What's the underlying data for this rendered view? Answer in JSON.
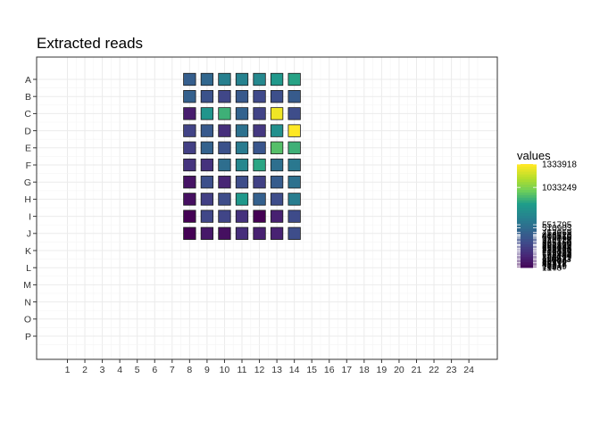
{
  "chart_data": {
    "type": "heatmap",
    "title": "Extracted reads",
    "xlabel": "",
    "ylabel": "",
    "rows": [
      "A",
      "B",
      "C",
      "D",
      "E",
      "F",
      "G",
      "H",
      "I",
      "J",
      "K",
      "L",
      "M",
      "N",
      "O",
      "P"
    ],
    "columns": [
      "1",
      "2",
      "3",
      "4",
      "5",
      "6",
      "7",
      "8",
      "9",
      "10",
      "11",
      "12",
      "13",
      "14",
      "15",
      "16",
      "17",
      "18",
      "19",
      "20",
      "21",
      "22",
      "23",
      "24"
    ],
    "filled_columns": [
      "8",
      "9",
      "10",
      "11",
      "12",
      "13",
      "14"
    ],
    "filled_rows": [
      "A",
      "B",
      "C",
      "D",
      "E",
      "F",
      "G",
      "H",
      "I",
      "J"
    ],
    "values": [
      [
        450000,
        500000,
        650000,
        660000,
        700000,
        800000,
        850000
      ],
      [
        460000,
        380000,
        320000,
        420000,
        330000,
        360000,
        430000
      ],
      [
        120000,
        780000,
        900000,
        480000,
        300000,
        1300000,
        350000
      ],
      [
        300000,
        420000,
        200000,
        560000,
        250000,
        750000,
        1333918
      ],
      [
        280000,
        470000,
        380000,
        620000,
        400000,
        950000,
        900000
      ],
      [
        230000,
        220000,
        540000,
        690000,
        860000,
        550000,
        600000
      ],
      [
        80000,
        360000,
        160000,
        350000,
        290000,
        440000,
        560000
      ],
      [
        60000,
        280000,
        350000,
        800000,
        460000,
        350000,
        630000
      ],
      [
        1500,
        320000,
        310000,
        220000,
        717,
        140000,
        340000
      ],
      [
        2000,
        100000,
        60000,
        200000,
        140000,
        150000,
        350000
      ]
    ],
    "legend": {
      "title": "values",
      "max_value": 1333918,
      "min_value": 717,
      "labels": [
        "1333918",
        "1033249",
        "551795",
        "510903",
        "453069",
        "426913",
        "416620",
        "403510",
        "390166",
        "370029",
        "344118",
        "325160",
        "301212",
        "292300",
        "280811",
        "265344",
        "250102",
        "239975",
        "224460",
        "210337",
        "199015",
        "185208",
        "171443",
        "156107",
        "140299",
        "125611",
        "110873",
        "95004",
        "80160",
        "64372",
        "48311",
        "33217",
        "18049",
        "1948",
        "717"
      ]
    },
    "colors": {
      "low": "#440154",
      "mid": "#21908C",
      "high": "#FDE725",
      "grid": "#ebebeb",
      "panel_border": "#333333"
    }
  }
}
